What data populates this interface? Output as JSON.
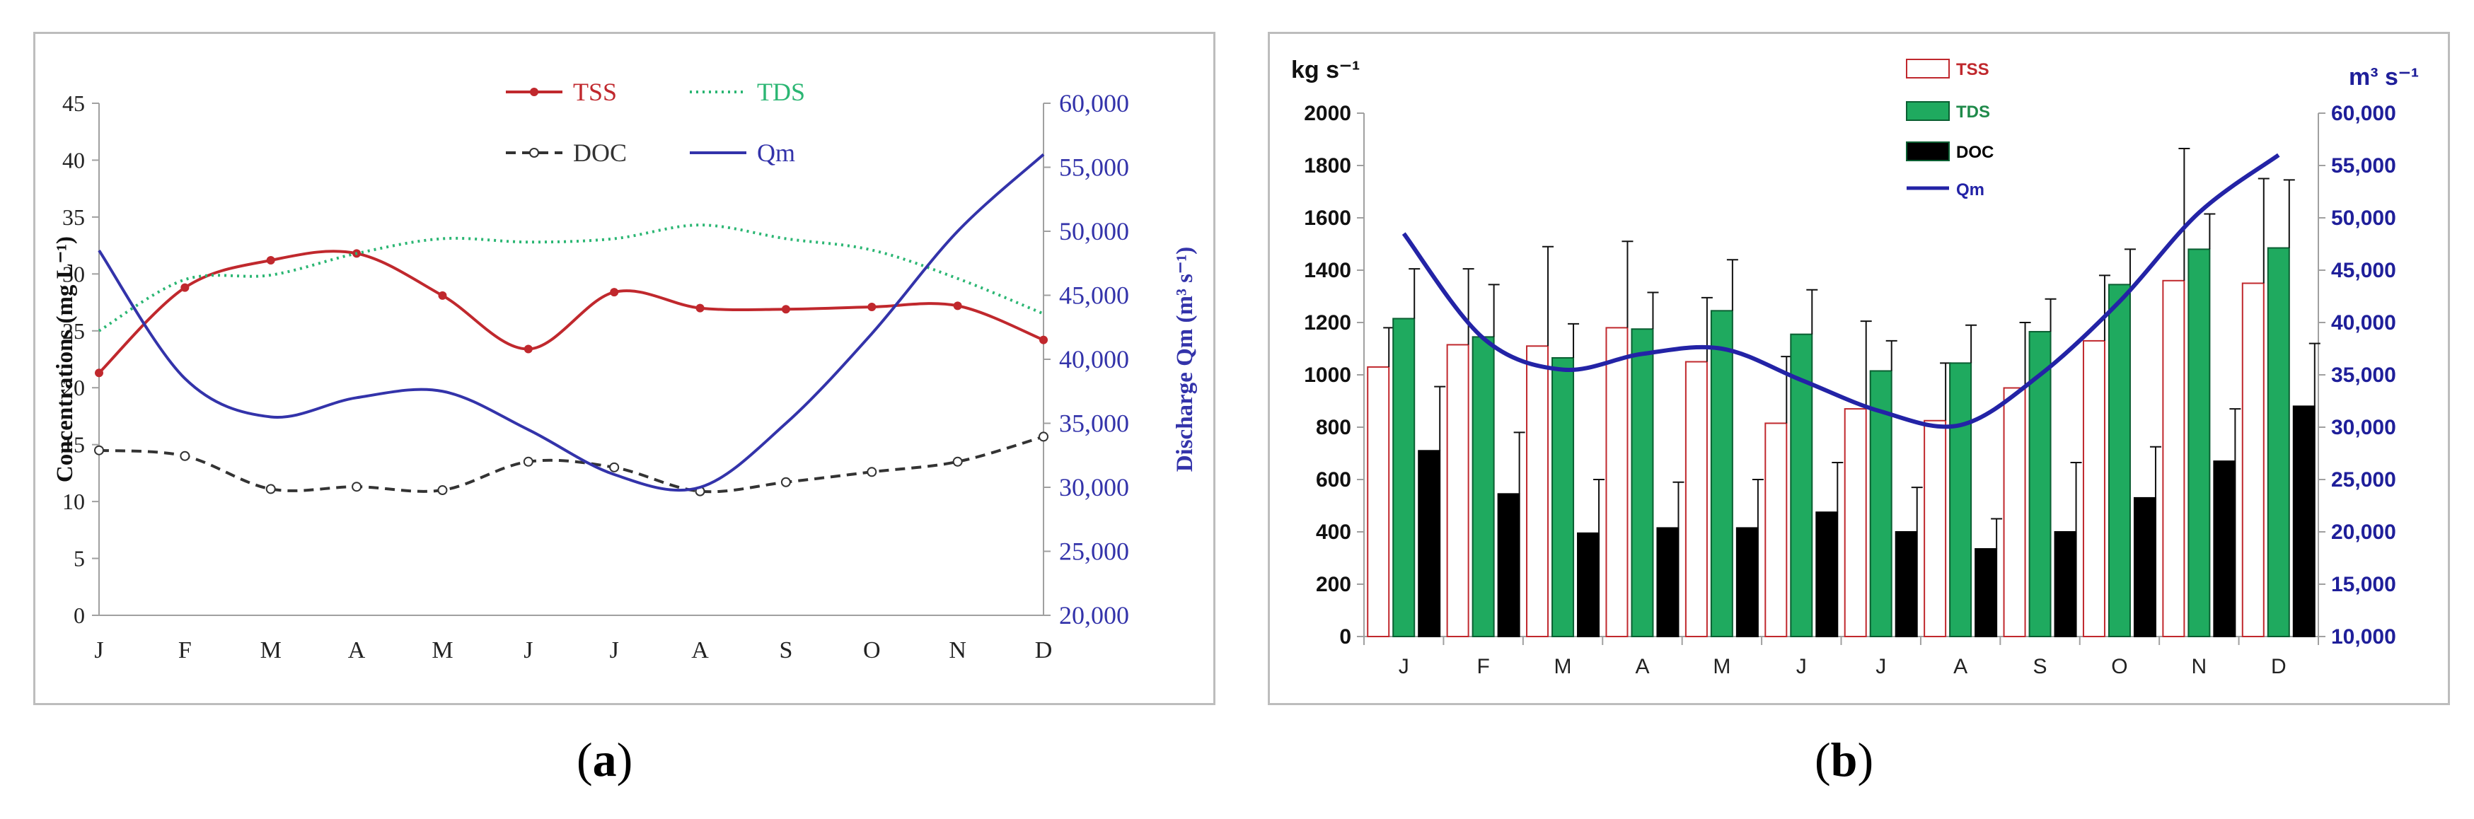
{
  "captions": {
    "a": "a",
    "b": "b"
  },
  "chart_data": [
    {
      "type": "line",
      "panel": "a",
      "categories": [
        "J",
        "F",
        "M",
        "A",
        "M",
        "J",
        "J",
        "A",
        "S",
        "O",
        "N",
        "D"
      ],
      "ylabel": "Concentrations (mg L⁻¹)",
      "y2label": "Discharge Qm (m³ s⁻¹)",
      "ylim": [
        0,
        45
      ],
      "y2lim": [
        20000,
        60000
      ],
      "yticks": [
        "0",
        "5",
        "10",
        "15",
        "20",
        "25",
        "30",
        "35",
        "40",
        "45"
      ],
      "y2ticks": [
        "20,000",
        "25,000",
        "30,000",
        "35,000",
        "40,000",
        "45,000",
        "50,000",
        "55,000",
        "60,000"
      ],
      "legend": [
        {
          "name": "TSS",
          "color": "#c0282d"
        },
        {
          "name": "TDS",
          "color": "#2bb673"
        },
        {
          "name": "DOC",
          "color": "#333333"
        },
        {
          "name": "Qm",
          "color": "#3333aa"
        }
      ],
      "series": [
        {
          "name": "TSS",
          "axis": "left",
          "color": "#c0282d",
          "values": [
            21.3,
            28.8,
            31.2,
            31.8,
            28.1,
            23.4,
            28.4,
            27.0,
            26.9,
            27.1,
            27.2,
            24.2
          ]
        },
        {
          "name": "TDS",
          "axis": "left",
          "color": "#2bb673",
          "values": [
            25.0,
            29.5,
            29.9,
            31.8,
            33.1,
            32.8,
            33.1,
            34.3,
            33.1,
            32.1,
            29.6,
            26.5
          ]
        },
        {
          "name": "DOC",
          "axis": "left",
          "color": "#333333",
          "values": [
            14.5,
            14.0,
            11.1,
            11.3,
            11.0,
            13.5,
            13.0,
            10.9,
            11.7,
            12.6,
            13.5,
            15.7
          ]
        },
        {
          "name": "Qm",
          "axis": "right",
          "color": "#3333aa",
          "values": [
            48500,
            38500,
            35500,
            37000,
            37500,
            34500,
            31000,
            30000,
            35000,
            42000,
            50000,
            56000
          ]
        }
      ]
    },
    {
      "type": "bar",
      "panel": "b",
      "categories": [
        "J",
        "F",
        "M",
        "A",
        "M",
        "J",
        "J",
        "A",
        "S",
        "O",
        "N",
        "D"
      ],
      "ylabel": "kg s⁻¹",
      "y2label": "m³ s⁻¹",
      "ylim": [
        0,
        2000
      ],
      "y2lim": [
        10000,
        60000
      ],
      "yticks": [
        "0",
        "200",
        "400",
        "600",
        "800",
        "1000",
        "1200",
        "1400",
        "1600",
        "1800",
        "2000"
      ],
      "y2ticks": [
        "10,000",
        "15,000",
        "20,000",
        "25,000",
        "30,000",
        "35,000",
        "40,000",
        "45,000",
        "50,000",
        "55,000",
        "60,000"
      ],
      "legend": [
        {
          "name": "TSS",
          "color": "#ffffff",
          "stroke": "#c0282d",
          "text_color": "#c0282d"
        },
        {
          "name": "TDS",
          "color": "#1faa5f",
          "text_color": "#1f8a4a"
        },
        {
          "name": "DOC",
          "color": "#000000",
          "text_color": "#000000"
        },
        {
          "name": "Qm",
          "color": "#2323a6",
          "text_color": "#2323a6"
        }
      ],
      "series": [
        {
          "name": "TSS",
          "color": "#ffffff",
          "stroke": "#c0282d",
          "values": [
            1030,
            1115,
            1110,
            1180,
            1050,
            815,
            870,
            825,
            950,
            1130,
            1360,
            1350
          ],
          "errors": [
            150,
            290,
            380,
            330,
            245,
            255,
            335,
            220,
            250,
            250,
            505,
            400
          ]
        },
        {
          "name": "TDS",
          "color": "#1faa5f",
          "stroke": "#0a5f32",
          "values": [
            1215,
            1145,
            1065,
            1175,
            1245,
            1155,
            1015,
            1045,
            1165,
            1345,
            1480,
            1485
          ],
          "errors": [
            190,
            200,
            130,
            140,
            195,
            170,
            115,
            145,
            125,
            135,
            135,
            260
          ]
        },
        {
          "name": "DOC",
          "color": "#000000",
          "stroke": "#000000",
          "values": [
            710,
            545,
            395,
            415,
            415,
            475,
            400,
            335,
            400,
            530,
            670,
            880
          ],
          "errors": [
            245,
            235,
            205,
            175,
            185,
            190,
            170,
            115,
            265,
            195,
            200,
            240
          ]
        },
        {
          "name": "Qm",
          "axis": "right",
          "type": "line",
          "color": "#2323a6",
          "values": [
            48500,
            38500,
            35500,
            37000,
            37500,
            34500,
            31500,
            30200,
            35000,
            42000,
            50500,
            56000
          ]
        }
      ]
    }
  ]
}
